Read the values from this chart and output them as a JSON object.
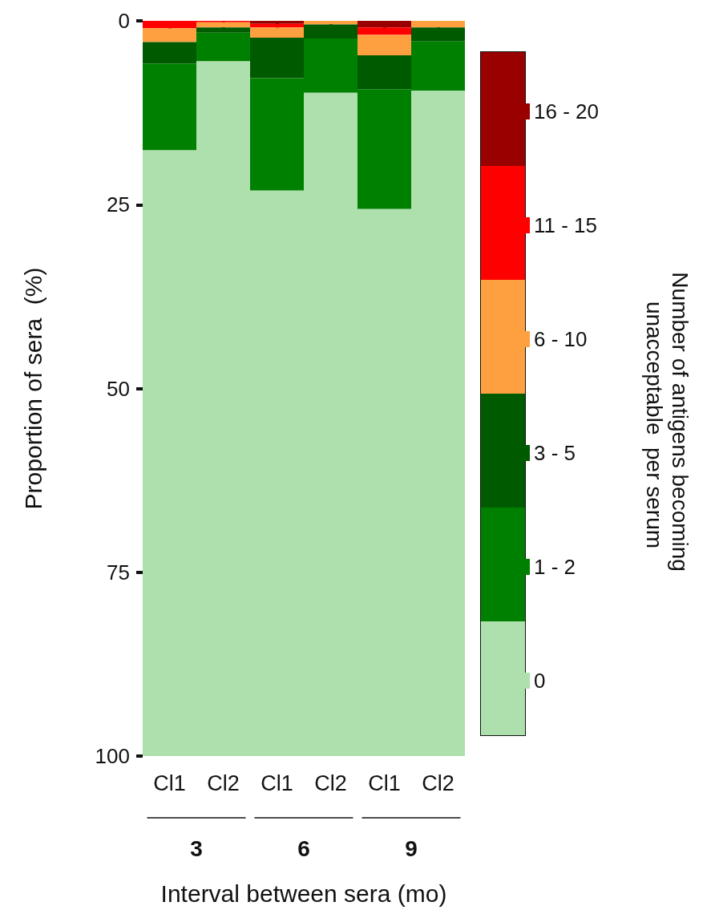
{
  "chart_data": {
    "type": "bar",
    "stacked": true,
    "xlabel": "Interval between sera (mo)",
    "ylabel": "Proportion of sera  (%)",
    "legend_title": "Number of antigens becoming unacceptable  per serum",
    "categories": [
      "Cl1",
      "Cl2",
      "Cl1",
      "Cl2",
      "Cl1",
      "Cl2"
    ],
    "series": [
      {
        "name": "16 - 20",
        "color": "#990000",
        "values": [
          0,
          0,
          0.4,
          0,
          0.9,
          0
        ]
      },
      {
        "name": "11 - 15",
        "color": "#ff0000",
        "values": [
          1.0,
          0.2,
          0.5,
          0,
          1.0,
          0
        ]
      },
      {
        "name": "6 - 10",
        "color": "#ffa040",
        "values": [
          1.9,
          0.7,
          1.4,
          0.5,
          2.8,
          0.9
        ]
      },
      {
        "name": "3 - 5",
        "color": "#005a00",
        "values": [
          2.9,
          0.7,
          5.5,
          1.9,
          4.6,
          1.9
        ]
      },
      {
        "name": "1 - 2",
        "color": "#008000",
        "values": [
          11.8,
          3.9,
          15.3,
          7.4,
          16.3,
          6.7
        ]
      },
      {
        "name": "0",
        "color": "#aee0ae",
        "values": [
          82.4,
          94.5,
          76.9,
          90.2,
          74.4,
          90.5
        ]
      }
    ],
    "ylim": [
      100,
      0
    ],
    "yticks": [
      0,
      25,
      50,
      75,
      100
    ],
    "grid": false,
    "legend": "right",
    "annotations": [
      "3",
      "6",
      "9"
    ]
  }
}
